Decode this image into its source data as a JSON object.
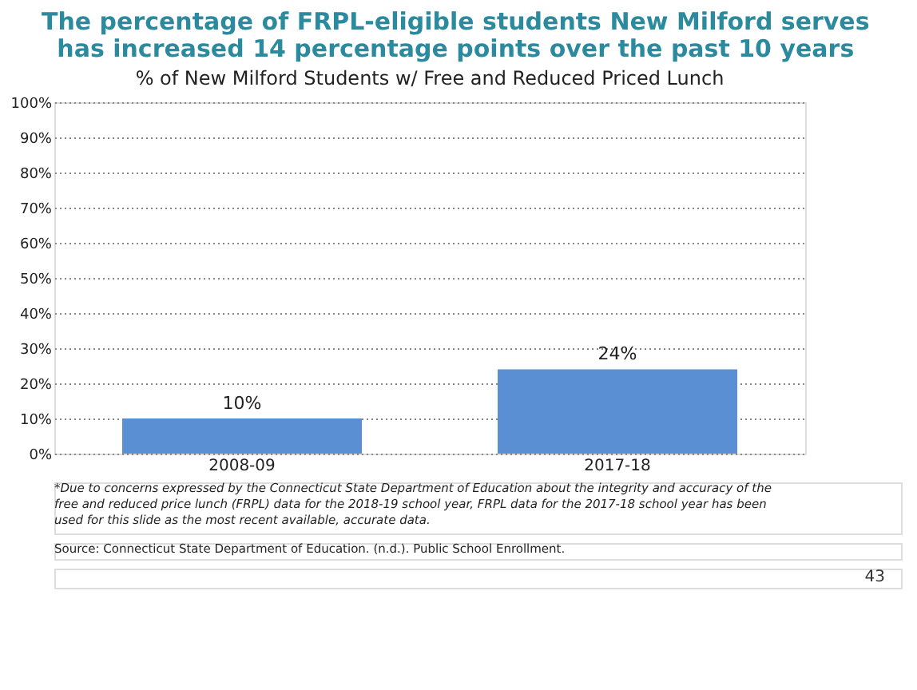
{
  "chart_data": {
    "type": "bar",
    "title": "The percentage of FRPL-eligible students New Milford serves has increased 14 percentage points over the past 10 years",
    "subtitle": "% of New Milford Students w/ Free and Reduced Priced Lunch",
    "categories": [
      "2008-09",
      "2017-18"
    ],
    "values": [
      10,
      24
    ],
    "value_labels": [
      "10%",
      "24%"
    ],
    "color": "#5b8fd4",
    "ylim": [
      0,
      100
    ],
    "yticks": [
      {
        "value": 0,
        "label": "0%"
      },
      {
        "value": 10,
        "label": "10%"
      },
      {
        "value": 20,
        "label": "20%"
      },
      {
        "value": 30,
        "label": "30%"
      },
      {
        "value": 40,
        "label": "40%"
      },
      {
        "value": 50,
        "label": "50%"
      },
      {
        "value": 60,
        "label": "60%"
      },
      {
        "value": 70,
        "label": "70%"
      },
      {
        "value": 80,
        "label": "80%"
      },
      {
        "value": 90,
        "label": "90%"
      },
      {
        "value": 100,
        "label": "100%"
      }
    ],
    "grid": "y",
    "annotations": [
      "*Due to concerns expressed by the Connecticut State Department of Education about the integrity and accuracy of the free and reduced price lunch (FRPL) data for the 2018-19 school year, FRPL data for the 2017-18 school year has been used for this slide as the most recent available, accurate data.",
      "Source: Connecticut State Department of Education. (n.d.). Public School Enrollment.",
      "43"
    ]
  }
}
